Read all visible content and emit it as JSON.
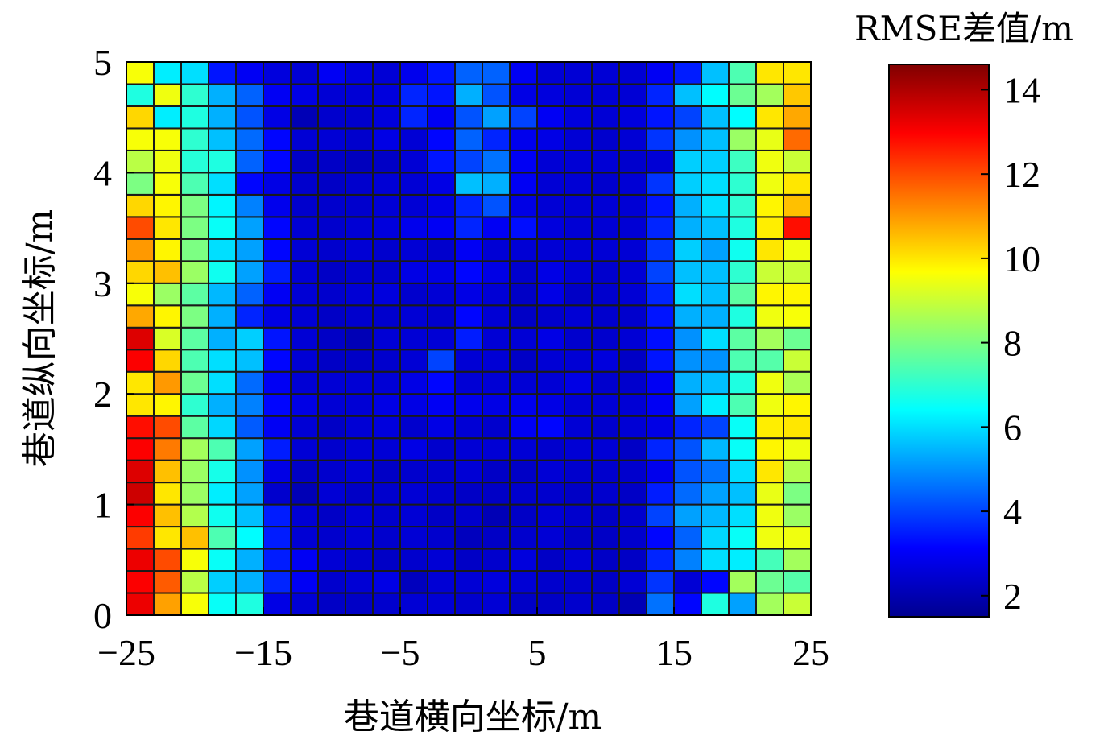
{
  "chart_data": {
    "type": "heatmap",
    "xlabel": "巷道横向坐标/m",
    "ylabel": "巷道纵向坐标/m",
    "colorbar_label": "RMSE差值/m",
    "xlim": [
      -25,
      25
    ],
    "ylim": [
      0,
      5
    ],
    "x_ticks": [
      -25,
      -15,
      -5,
      5,
      15,
      25
    ],
    "x_tick_labels": [
      "−25",
      "−15",
      "−5",
      "5",
      "15",
      "25"
    ],
    "y_ticks": [
      0,
      1,
      2,
      3,
      4,
      5
    ],
    "y_tick_labels": [
      "0",
      "1",
      "2",
      "3",
      "4",
      "5"
    ],
    "colorbar_range": [
      1.5,
      14.6
    ],
    "colorbar_ticks": [
      2,
      4,
      6,
      8,
      10,
      12,
      14
    ],
    "colorbar_tick_labels": [
      "2",
      "4",
      "6",
      "8",
      "10",
      "12",
      "14"
    ],
    "colormap": "jet",
    "grid_lines": true,
    "x_cell_count": 25,
    "y_cell_count": 25,
    "values": [
      [
        13.2,
        10.9,
        9.6,
        6.5,
        6.8,
        2.8,
        2.6,
        2.4,
        2.4,
        2.5,
        2.6,
        2.6,
        2.5,
        2.6,
        2.4,
        2.4,
        2.5,
        2.4,
        2.2,
        4.6,
        3.2,
        6.8,
        5.2,
        8.5,
        9.0
      ],
      [
        13.0,
        11.8,
        8.8,
        5.8,
        5.4,
        3.6,
        3.0,
        2.5,
        2.6,
        2.8,
        2.3,
        2.6,
        2.6,
        2.7,
        2.6,
        2.5,
        2.5,
        2.4,
        2.6,
        3.8,
        2.6,
        3.2,
        8.5,
        7.8,
        7.5
      ],
      [
        13.2,
        12.0,
        9.6,
        6.5,
        5.4,
        3.5,
        3.0,
        2.6,
        2.5,
        2.4,
        2.5,
        2.6,
        2.4,
        2.5,
        2.7,
        2.4,
        2.6,
        2.4,
        2.4,
        3.6,
        4.8,
        6.0,
        6.2,
        7.3,
        8.5
      ],
      [
        12.2,
        10.0,
        10.5,
        7.4,
        6.4,
        3.5,
        2.6,
        2.5,
        2.6,
        2.5,
        2.6,
        2.5,
        2.3,
        2.4,
        2.5,
        2.6,
        2.4,
        2.4,
        2.5,
        3.2,
        4.4,
        5.9,
        6.5,
        9.5,
        9.5
      ],
      [
        13.0,
        10.5,
        8.7,
        6.6,
        5.6,
        3.5,
        2.6,
        2.4,
        2.6,
        2.5,
        2.6,
        2.4,
        2.5,
        2.2,
        2.4,
        2.6,
        2.5,
        2.4,
        2.5,
        4.0,
        5.2,
        5.5,
        6.0,
        9.5,
        8.4
      ],
      [
        13.6,
        10.0,
        8.4,
        6.2,
        5.2,
        2.5,
        2.2,
        2.6,
        2.4,
        2.5,
        2.6,
        2.5,
        2.4,
        2.4,
        2.5,
        2.5,
        2.4,
        2.5,
        2.4,
        3.5,
        4.5,
        5.2,
        5.6,
        9.4,
        8.0
      ],
      [
        13.4,
        10.5,
        8.4,
        6.7,
        5.0,
        2.8,
        2.4,
        2.5,
        2.6,
        2.4,
        2.5,
        2.5,
        2.6,
        2.4,
        2.4,
        2.6,
        2.5,
        2.5,
        2.5,
        2.9,
        4.2,
        4.6,
        6.0,
        10.0,
        8.7
      ],
      [
        13.0,
        11.4,
        8.5,
        7.4,
        5.2,
        3.5,
        2.6,
        2.5,
        2.6,
        2.6,
        2.8,
        2.5,
        2.6,
        2.6,
        2.6,
        2.5,
        2.6,
        2.6,
        2.4,
        3.6,
        4.2,
        5.5,
        6.5,
        9.8,
        9.5
      ],
      [
        12.8,
        12.0,
        7.6,
        5.9,
        4.3,
        3.0,
        2.6,
        2.4,
        2.6,
        2.7,
        2.5,
        2.8,
        2.6,
        2.5,
        3.0,
        3.2,
        2.6,
        2.5,
        2.6,
        2.8,
        3.6,
        4.0,
        6.5,
        9.9,
        10.0
      ],
      [
        10.0,
        9.8,
        7.0,
        5.4,
        4.8,
        3.2,
        2.8,
        2.6,
        2.6,
        2.8,
        2.8,
        3.0,
        2.9,
        2.8,
        2.9,
        2.8,
        2.6,
        2.6,
        2.6,
        3.0,
        5.2,
        6.2,
        7.4,
        9.5,
        9.8
      ],
      [
        10.0,
        11.0,
        7.8,
        6.0,
        4.5,
        3.0,
        2.6,
        2.6,
        2.6,
        2.6,
        2.8,
        3.2,
        2.6,
        2.6,
        2.6,
        2.6,
        2.8,
        2.5,
        2.5,
        3.0,
        5.4,
        5.6,
        6.8,
        9.5,
        8.6
      ],
      [
        13.0,
        10.2,
        7.4,
        6.0,
        5.6,
        3.2,
        2.6,
        2.4,
        2.4,
        2.5,
        2.6,
        4.0,
        2.6,
        2.6,
        2.4,
        2.6,
        2.6,
        2.7,
        2.4,
        3.4,
        5.0,
        5.0,
        7.4,
        7.5,
        9.0
      ],
      [
        13.4,
        9.2,
        7.6,
        5.4,
        5.8,
        3.4,
        2.6,
        2.4,
        2.2,
        2.6,
        2.6,
        2.6,
        3.5,
        2.6,
        2.6,
        2.8,
        2.5,
        2.5,
        2.6,
        3.3,
        5.0,
        6.0,
        7.6,
        8.5,
        7.8
      ],
      [
        10.8,
        9.8,
        8.0,
        5.4,
        3.6,
        2.8,
        2.6,
        2.4,
        2.5,
        2.5,
        2.6,
        2.5,
        3.2,
        2.6,
        2.4,
        2.5,
        2.6,
        2.5,
        2.5,
        3.4,
        5.4,
        5.4,
        6.8,
        9.5,
        9.6
      ],
      [
        9.6,
        8.4,
        7.6,
        5.5,
        4.4,
        3.0,
        2.6,
        2.5,
        2.6,
        2.7,
        2.5,
        2.6,
        2.8,
        2.6,
        2.4,
        2.8,
        2.4,
        2.5,
        2.6,
        3.6,
        6.0,
        5.6,
        7.6,
        9.8,
        9.8
      ],
      [
        10.2,
        10.5,
        8.4,
        6.6,
        5.2,
        3.5,
        2.6,
        2.4,
        2.5,
        2.5,
        2.8,
        2.8,
        3.2,
        2.8,
        2.5,
        2.8,
        2.6,
        2.5,
        2.6,
        4.0,
        5.6,
        5.6,
        7.0,
        9.0,
        9.0
      ],
      [
        11.0,
        9.8,
        8.0,
        6.0,
        5.2,
        3.2,
        2.6,
        2.5,
        2.6,
        2.5,
        2.6,
        2.5,
        3.0,
        2.6,
        2.6,
        2.6,
        2.6,
        2.6,
        2.6,
        3.8,
        5.8,
        5.2,
        6.6,
        10.0,
        9.5
      ],
      [
        12.0,
        10.0,
        8.0,
        6.5,
        5.2,
        3.2,
        2.6,
        2.5,
        2.6,
        2.7,
        2.9,
        3.0,
        3.6,
        3.0,
        3.3,
        2.7,
        2.6,
        2.6,
        2.6,
        3.6,
        5.4,
        5.6,
        6.8,
        9.9,
        12.8
      ],
      [
        10.2,
        9.8,
        8.0,
        6.3,
        4.8,
        2.9,
        2.5,
        2.5,
        2.5,
        2.6,
        2.6,
        2.8,
        3.6,
        4.2,
        2.8,
        2.6,
        2.6,
        2.6,
        2.6,
        3.4,
        5.4,
        6.0,
        7.0,
        9.8,
        10.5
      ],
      [
        8.0,
        9.6,
        7.4,
        6.0,
        3.2,
        2.8,
        2.5,
        2.4,
        2.5,
        2.6,
        2.6,
        2.8,
        5.6,
        5.4,
        3.0,
        2.6,
        2.6,
        2.5,
        2.6,
        3.8,
        5.8,
        6.0,
        7.0,
        9.5,
        10.0
      ],
      [
        8.8,
        9.5,
        6.9,
        6.8,
        4.4,
        3.2,
        2.4,
        2.4,
        2.3,
        2.4,
        2.6,
        3.4,
        4.0,
        4.6,
        3.0,
        2.6,
        2.6,
        2.6,
        2.5,
        2.6,
        5.8,
        5.8,
        7.2,
        9.5,
        9.0
      ],
      [
        9.6,
        9.6,
        7.0,
        5.6,
        4.5,
        3.2,
        2.6,
        2.6,
        2.5,
        2.8,
        2.6,
        3.2,
        4.4,
        3.6,
        2.9,
        2.8,
        2.6,
        2.5,
        2.6,
        3.8,
        5.0,
        5.6,
        8.4,
        9.4,
        11.6
      ],
      [
        10.2,
        6.2,
        6.8,
        5.4,
        4.2,
        2.8,
        2.2,
        2.5,
        2.5,
        2.7,
        3.6,
        3.0,
        4.2,
        5.2,
        4.0,
        3.0,
        2.7,
        2.6,
        2.7,
        3.4,
        4.0,
        5.6,
        6.4,
        10.0,
        10.8
      ],
      [
        6.8,
        9.5,
        7.0,
        5.4,
        4.4,
        3.0,
        2.8,
        2.6,
        2.6,
        2.7,
        3.6,
        3.4,
        5.4,
        4.2,
        2.8,
        2.7,
        2.6,
        2.6,
        2.6,
        3.6,
        5.6,
        6.4,
        7.8,
        8.5,
        10.4
      ],
      [
        9.6,
        6.2,
        6.0,
        3.4,
        3.0,
        2.7,
        2.6,
        3.0,
        2.7,
        2.6,
        2.9,
        3.4,
        4.4,
        4.4,
        3.0,
        2.6,
        2.6,
        2.6,
        2.6,
        3.0,
        3.5,
        5.6,
        7.4,
        10.0,
        10.0
      ]
    ]
  }
}
